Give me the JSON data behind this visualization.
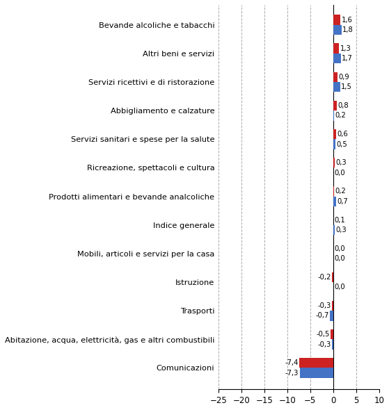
{
  "categories": [
    "Bevande alcoliche e tabacchi",
    "Altri beni e servizi",
    "Servizi ricettivi e di ristorazione",
    "Abbigliamento e calzature",
    "Servizi sanitari e spese per la salute",
    "Ricreazione, spettacoli e cultura",
    "Prodotti alimentari e bevande analcoliche",
    "Indice generale",
    "Mobili, articoli e servizi per la casa",
    "Istruzione",
    "Trasporti",
    "Abitazione, acqua, elettricità, gas e altri combustibili",
    "Comunicazioni"
  ],
  "toscana": [
    1.6,
    1.3,
    0.9,
    0.8,
    0.6,
    0.3,
    0.2,
    0.1,
    0.0,
    -0.2,
    -0.3,
    -0.5,
    -7.4
  ],
  "italia": [
    1.8,
    1.7,
    1.5,
    0.2,
    0.5,
    0.0,
    0.7,
    0.3,
    0.0,
    0.0,
    -0.7,
    -0.3,
    -7.3
  ],
  "color_toscana": "#CC2222",
  "color_italia": "#4472C4",
  "xlim": [
    -25,
    10
  ],
  "xticks": [
    -25,
    -20,
    -15,
    -10,
    -5,
    0,
    5,
    10
  ],
  "bar_height": 0.35,
  "background_color": "#FFFFFF",
  "grid_color": "#AAAAAA",
  "label_fontsize": 8.2,
  "tick_fontsize": 8.5,
  "value_fontsize": 7.2
}
